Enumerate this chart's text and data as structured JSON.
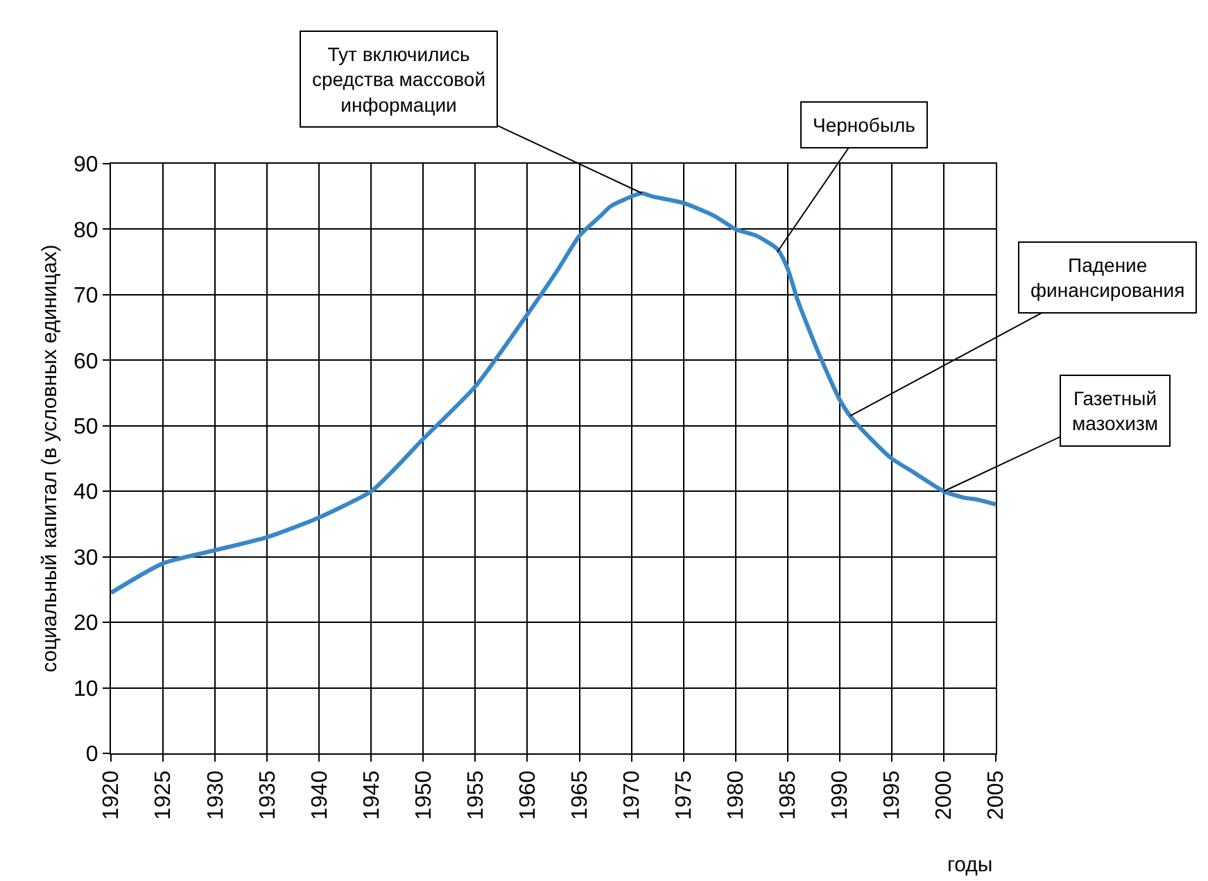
{
  "chart_data": {
    "type": "line",
    "xlabel": "годы",
    "ylabel": "социальный капитал (в условных единицах)",
    "x": [
      1920,
      1925,
      1930,
      1935,
      1940,
      1945,
      1947,
      1950,
      1955,
      1960,
      1963,
      1965,
      1967,
      1968,
      1970,
      1971,
      1972,
      1975,
      1978,
      1980,
      1982,
      1984,
      1985,
      1986,
      1988,
      1990,
      1991,
      1993,
      1995,
      1997,
      2000,
      2002,
      2003,
      2005
    ],
    "series": [
      {
        "color": "#3a87c8",
        "values": [
          24.5,
          29,
          31,
          33,
          36,
          40,
          43,
          48,
          56,
          67,
          74,
          79,
          82,
          83.5,
          85,
          85.5,
          85,
          84,
          82,
          80,
          79,
          77,
          74,
          69,
          61,
          54,
          51.5,
          48,
          45,
          43,
          40,
          39,
          38.8,
          38
        ]
      }
    ],
    "xlim": [
      1920,
      2005
    ],
    "xticks": [
      1920,
      1925,
      1930,
      1935,
      1940,
      1945,
      1950,
      1955,
      1960,
      1965,
      1970,
      1975,
      1980,
      1985,
      1990,
      1995,
      2000,
      2005
    ],
    "ylim": [
      0,
      90
    ],
    "yticks": [
      0,
      10,
      20,
      30,
      40,
      50,
      60,
      70,
      80,
      90
    ],
    "grid": true,
    "marker": "none",
    "line_style": "solid",
    "annotations": [
      {
        "text": "Тут включились\nсредства массовой\nинформации",
        "x": 1971,
        "y": 85.5
      },
      {
        "text": "Чернобыль",
        "x": 1984,
        "y": 76.5
      },
      {
        "text": "Падение\nфинансирования",
        "x": 1991,
        "y": 51.5
      },
      {
        "text": "Газетный\nмазохизм",
        "x": 2000,
        "y": 40
      }
    ]
  }
}
